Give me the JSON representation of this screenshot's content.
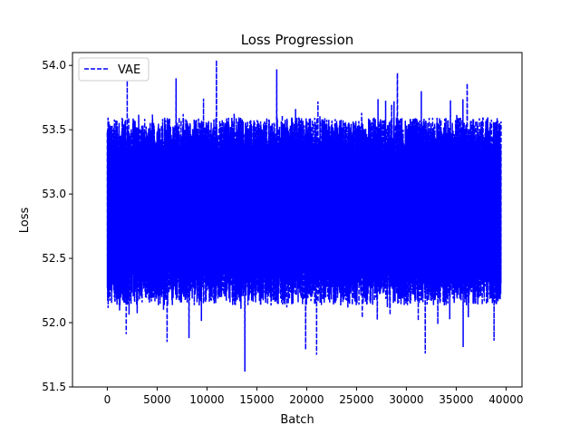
{
  "chart_data": {
    "type": "line",
    "title": "Loss Progression",
    "xlabel": "Batch",
    "ylabel": "Loss",
    "xlim": [
      -3490,
      41600
    ],
    "ylim": [
      51.5,
      54.1
    ],
    "x_ticks": [
      0,
      5000,
      10000,
      15000,
      20000,
      25000,
      30000,
      35000,
      40000
    ],
    "x_tick_labels": [
      "0",
      "5000",
      "10000",
      "15000",
      "20000",
      "25000",
      "30000",
      "35000",
      "40000"
    ],
    "y_ticks": [
      51.5,
      52.0,
      52.5,
      53.0,
      53.5,
      54.0
    ],
    "y_tick_labels": [
      "51.5",
      "52.0",
      "52.5",
      "53.0",
      "53.5",
      "54.0"
    ],
    "grid": false,
    "legend_position": "top-left",
    "series": [
      {
        "name": "VAE",
        "color": "#0000ff",
        "line_style": "dashed",
        "x_range": [
          0,
          39500
        ],
        "band_low": 52.28,
        "band_high": 53.45,
        "peaks": [
          {
            "x": 2000,
            "y": 53.88
          },
          {
            "x": 6900,
            "y": 53.9
          },
          {
            "x": 10950,
            "y": 54.04
          },
          {
            "x": 17000,
            "y": 53.97
          },
          {
            "x": 29100,
            "y": 53.94
          },
          {
            "x": 31500,
            "y": 53.8
          },
          {
            "x": 36100,
            "y": 53.86
          }
        ],
        "troughs": [
          {
            "x": 1900,
            "y": 51.91
          },
          {
            "x": 6000,
            "y": 51.85
          },
          {
            "x": 8200,
            "y": 51.88
          },
          {
            "x": 13800,
            "y": 51.62
          },
          {
            "x": 19900,
            "y": 51.79
          },
          {
            "x": 21000,
            "y": 51.75
          },
          {
            "x": 31900,
            "y": 51.76
          },
          {
            "x": 35700,
            "y": 51.81
          },
          {
            "x": 38800,
            "y": 51.86
          }
        ]
      }
    ]
  }
}
